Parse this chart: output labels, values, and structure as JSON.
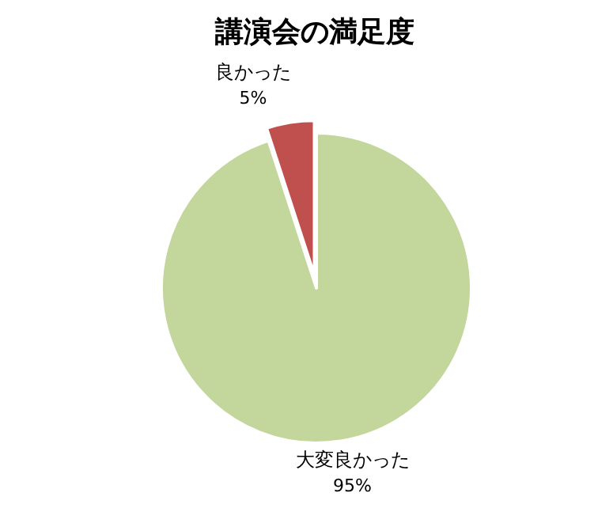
{
  "chart_data": {
    "type": "pie",
    "title": "講演会の満足度",
    "categories": [
      "大変良かった",
      "良かった"
    ],
    "values": [
      95,
      5
    ],
    "value_labels": [
      "95%",
      "5%"
    ],
    "colors": [
      "#c3d69b",
      "#c0504d"
    ]
  }
}
